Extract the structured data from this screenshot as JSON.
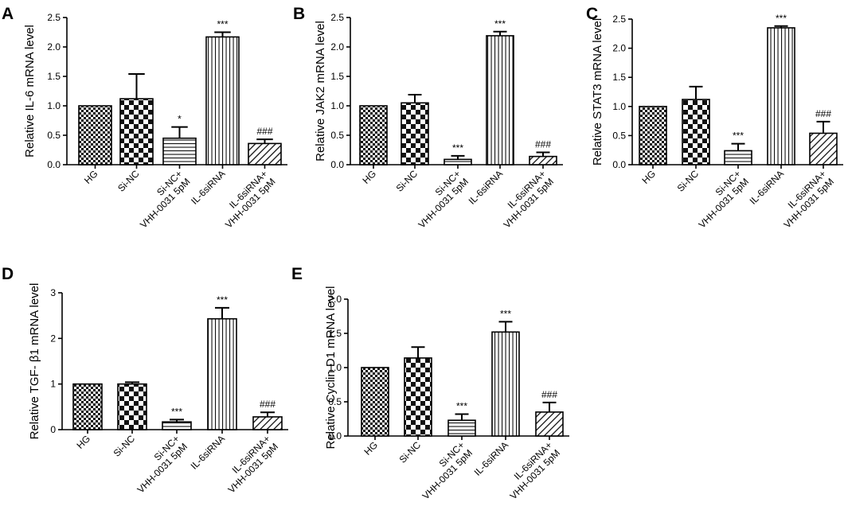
{
  "chart_data": [
    {
      "panel": "A",
      "type": "bar",
      "ylabel": "Relative IL-6 mRNA level",
      "ylim": [
        0,
        2.5
      ],
      "yticks": [
        0.0,
        0.5,
        1.0,
        1.5,
        2.0,
        2.5
      ],
      "tick_labels": [
        "0.0",
        "0.5",
        "1.0",
        "1.5",
        "2.0",
        "2.5"
      ],
      "categories": [
        [
          "HG"
        ],
        [
          "Si-NC"
        ],
        [
          "Si-NC+",
          "VHH-0031 5pM"
        ],
        [
          "IL-6siRNA"
        ],
        [
          "IL-6siRNA+",
          "VHH-0031 5pM"
        ]
      ],
      "values": [
        1.0,
        1.12,
        0.45,
        2.17,
        0.36
      ],
      "errors": [
        0.0,
        0.42,
        0.19,
        0.08,
        0.07
      ],
      "annotations": [
        "",
        "",
        "*",
        "***",
        "###"
      ]
    },
    {
      "panel": "B",
      "type": "bar",
      "ylabel": "Relative JAK2 mRNA level",
      "ylim": [
        0,
        2.5
      ],
      "yticks": [
        0.0,
        0.5,
        1.0,
        1.5,
        2.0,
        2.5
      ],
      "tick_labels": [
        "0.0",
        "0.5",
        "1.0",
        "1.5",
        "2.0",
        "2.5"
      ],
      "categories": [
        [
          "HG"
        ],
        [
          "Si-NC"
        ],
        [
          "Si-NC+",
          "VHH-0031 5pM"
        ],
        [
          "IL-6siRNA"
        ],
        [
          "IL-6siRNA+",
          "VHH-0031 5pM"
        ]
      ],
      "values": [
        1.0,
        1.05,
        0.09,
        2.19,
        0.14
      ],
      "errors": [
        0.0,
        0.14,
        0.06,
        0.07,
        0.07
      ],
      "annotations": [
        "",
        "",
        "***",
        "***",
        "###"
      ]
    },
    {
      "panel": "C",
      "type": "bar",
      "ylabel": "Relative STAT3 mRNA level",
      "ylim": [
        0,
        2.5
      ],
      "yticks": [
        0.0,
        0.5,
        1.0,
        1.5,
        2.0,
        2.5
      ],
      "tick_labels": [
        "0.0",
        "0.5",
        "1.0",
        "1.5",
        "2.0",
        "2.5"
      ],
      "categories": [
        [
          "HG"
        ],
        [
          "Si-NC"
        ],
        [
          "Si-NC+",
          "VHH-0031 5pM"
        ],
        [
          "IL-6siRNA"
        ],
        [
          "IL-6siRNA+",
          "VHH-0031 5pM"
        ]
      ],
      "values": [
        1.0,
        1.12,
        0.24,
        2.35,
        0.54
      ],
      "errors": [
        0.0,
        0.22,
        0.12,
        0.03,
        0.2
      ],
      "annotations": [
        "",
        "",
        "***",
        "***",
        "###"
      ]
    },
    {
      "panel": "D",
      "type": "bar",
      "ylabel": "Relative TGF- β1 mRNA level",
      "ylim": [
        0,
        3
      ],
      "yticks": [
        0,
        1,
        2,
        3
      ],
      "tick_labels": [
        "0",
        "1",
        "2",
        "3"
      ],
      "categories": [
        [
          "HG"
        ],
        [
          "Si-NC"
        ],
        [
          "Si-NC+",
          "VHH-0031 5pM"
        ],
        [
          "IL-6siRNA"
        ],
        [
          "IL-6siRNA+",
          "VHH-0031 5pM"
        ]
      ],
      "values": [
        1.0,
        1.0,
        0.17,
        2.43,
        0.28
      ],
      "errors": [
        0.0,
        0.04,
        0.05,
        0.24,
        0.1
      ],
      "annotations": [
        "",
        "",
        "***",
        "***",
        "###"
      ]
    },
    {
      "panel": "E",
      "type": "bar",
      "ylabel": "Relative Cyclin D1 mRNA level",
      "ylim": [
        0,
        2.0
      ],
      "yticks": [
        0.0,
        0.5,
        1.0,
        1.5,
        2.0
      ],
      "tick_labels": [
        "0.0",
        "0.5",
        "1.0",
        "1.5",
        "2.0"
      ],
      "categories": [
        [
          "HG"
        ],
        [
          "Si-NC"
        ],
        [
          "Si-NC+",
          "VHH-0031 5pM"
        ],
        [
          "IL-6siRNA"
        ],
        [
          "IL-6siRNA+",
          "VHH-0031 5pM"
        ]
      ],
      "values": [
        1.0,
        1.14,
        0.23,
        1.52,
        0.35
      ],
      "errors": [
        0.0,
        0.16,
        0.09,
        0.15,
        0.14
      ],
      "annotations": [
        "",
        "",
        "***",
        "***",
        "###"
      ]
    }
  ]
}
